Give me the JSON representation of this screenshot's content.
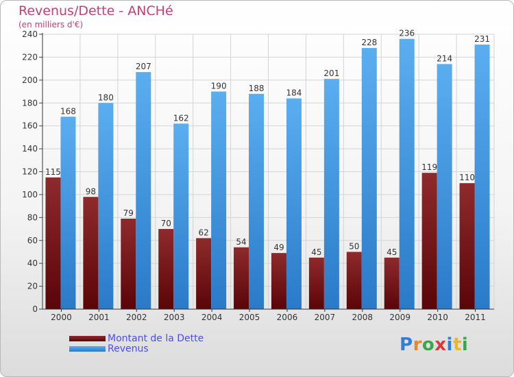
{
  "chart_data": {
    "type": "bar",
    "title": "Revenus/Dette - ANCHé",
    "subtitle": "(en milliers d'€)",
    "categories": [
      "2000",
      "2001",
      "2002",
      "2003",
      "2004",
      "2005",
      "2006",
      "2007",
      "2008",
      "2009",
      "2010",
      "2011"
    ],
    "series": [
      {
        "name": "Montant de la Dette",
        "color": "#7a1518",
        "values": [
          115,
          98,
          79,
          70,
          62,
          54,
          49,
          45,
          50,
          45,
          119,
          110
        ]
      },
      {
        "name": "Revenus",
        "color": "#3c92de",
        "values": [
          168,
          180,
          207,
          162,
          190,
          188,
          184,
          201,
          228,
          236,
          214,
          231
        ]
      }
    ],
    "ylim": [
      0,
      240
    ],
    "yticks": [
      0,
      20,
      40,
      60,
      80,
      100,
      120,
      140,
      160,
      180,
      200,
      220,
      240
    ],
    "grid": true,
    "legend_position": "bottom-left"
  },
  "logo": {
    "letters": [
      "P",
      "r",
      "o",
      "x",
      "i",
      "t",
      "i"
    ],
    "colors": [
      "#2f7fd8",
      "#e8872a",
      "#3aa84a",
      "#d83a3a",
      "#2f7fd8",
      "#e8b82a",
      "#3aa84a"
    ]
  }
}
